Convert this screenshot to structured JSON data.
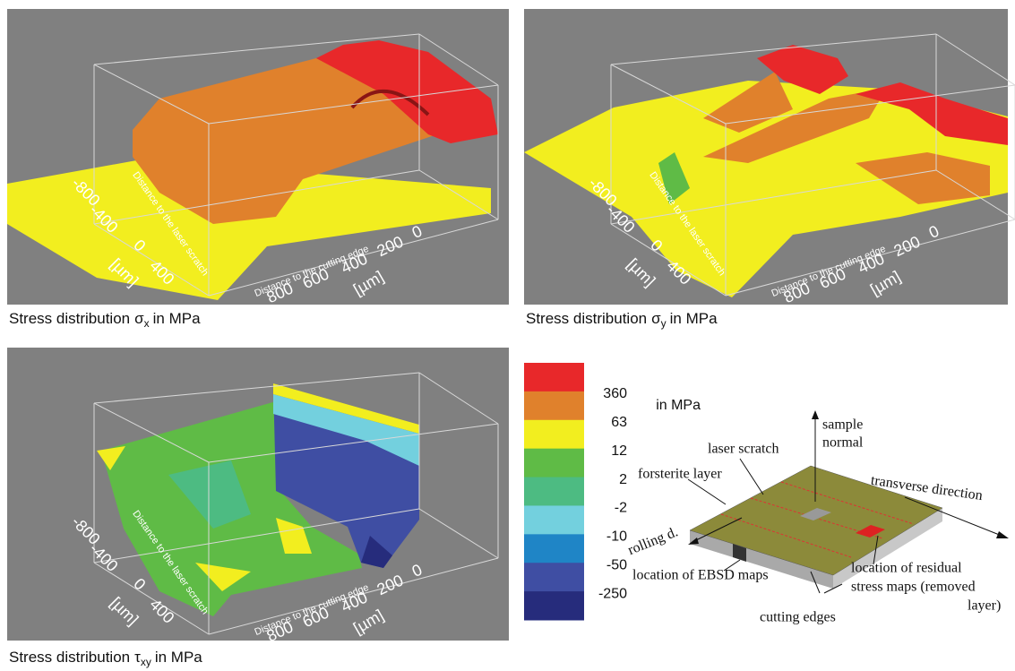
{
  "panels": [
    {
      "caption": {
        "text": "Stress distribution",
        "symbol": "σ",
        "subscript": "x",
        "unit": "in MPa"
      },
      "axes": {
        "scratch": {
          "title": "Distance to the laser scratch",
          "ticks": [
            -800,
            -400,
            0,
            400
          ],
          "unit": "[µm]"
        },
        "edge": {
          "title": "Distance to the cutting edge",
          "ticks": [
            800,
            600,
            400,
            200,
            0
          ],
          "unit": "[µm]"
        }
      }
    },
    {
      "caption": {
        "text": "Stress distribution",
        "symbol": "σ",
        "subscript": "y",
        "unit": "in MPa"
      },
      "axes": {
        "scratch": {
          "title": "Distance to the laser scratch",
          "ticks": [
            -800,
            -400,
            0,
            400
          ],
          "unit": "[µm]"
        },
        "edge": {
          "title": "Distance to the cutting edge",
          "ticks": [
            800,
            600,
            400,
            200,
            0
          ],
          "unit": "[µm]"
        }
      }
    },
    {
      "caption": {
        "text": "Stress distribution",
        "symbol": "τ",
        "subscript": "xy",
        "unit": "in MPa"
      },
      "axes": {
        "scratch": {
          "title": "Distance to the laser scratch",
          "ticks": [
            -800,
            -400,
            0,
            400
          ],
          "unit": "[µm]"
        },
        "edge": {
          "title": "Distance to the cutting edge",
          "ticks": [
            800,
            600,
            400,
            200,
            0
          ],
          "unit": "[µm]"
        }
      }
    }
  ],
  "colorbar": {
    "unit": "in MPa",
    "colors": [
      "#e8282a",
      "#e0812c",
      "#f2ee1f",
      "#5fbb46",
      "#4dbb82",
      "#73d0de",
      "#1f85c6",
      "#3f4ea3",
      "#262c7c"
    ],
    "labels": [
      360,
      63,
      12,
      2,
      -2,
      -10,
      -50,
      -250
    ]
  },
  "schematic": {
    "sample_normal": [
      "sample",
      "normal"
    ],
    "laser_scratch": "laser scratch",
    "transverse": "transverse direction",
    "forsterite": "forsterite layer",
    "rolling": "rolling d.",
    "ebsd": "location of EBSD maps",
    "residual": [
      "location of residual",
      "stress maps (removed",
      "layer)"
    ],
    "cutting_edges": "cutting edges"
  }
}
